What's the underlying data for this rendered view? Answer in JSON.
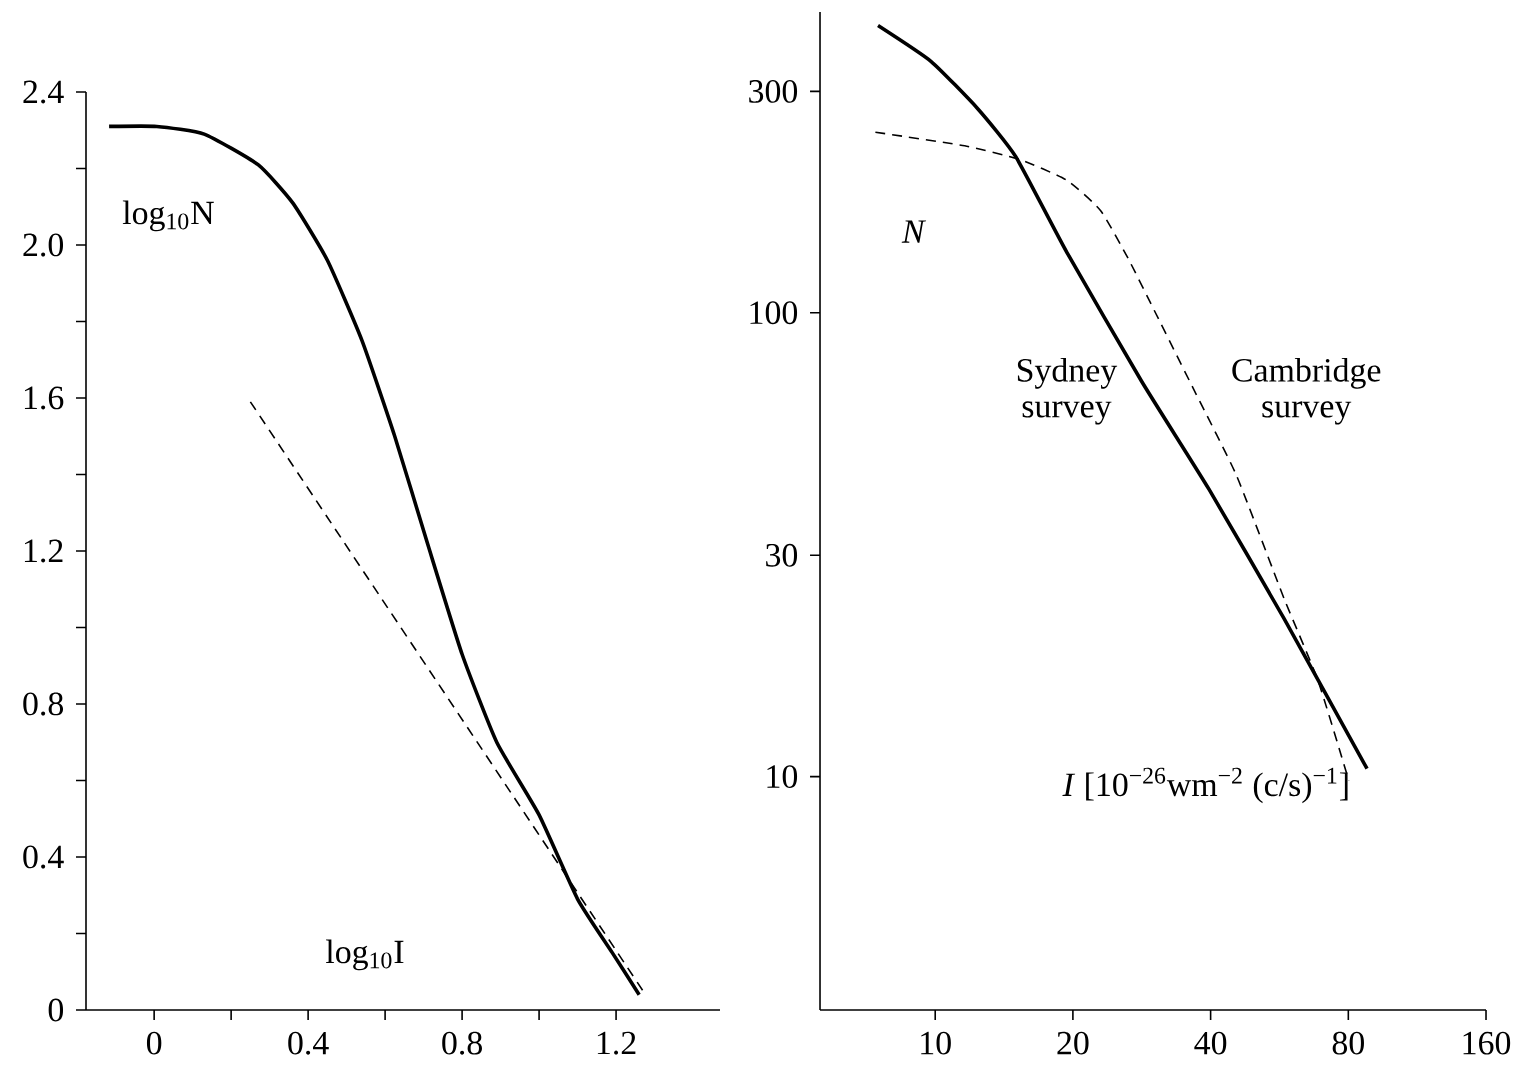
{
  "chart_data": [
    {
      "type": "line",
      "xlabel": "log$_{10}$I",
      "ylabel": "log$_{10}$N",
      "xlim": [
        -0.177,
        1.47
      ],
      "ylim": [
        0,
        2.4
      ],
      "xticks": [
        0,
        {
          "value": 0.2,
          "label": null
        },
        0.4,
        {
          "value": 0.6,
          "label": null
        },
        0.8,
        {
          "value": 1.0,
          "label": null
        },
        1.2
      ],
      "yticks": [
        0,
        {
          "value": 0.2,
          "label": null
        },
        0.4,
        {
          "value": 0.6,
          "label": null
        },
        0.8,
        {
          "value": 1.0,
          "label": null
        },
        1.2,
        {
          "value": 1.4,
          "label": null
        },
        1.6,
        {
          "value": 1.8,
          "label": null
        },
        {
          "value": 2.0,
          "label": "2.0"
        },
        {
          "value": 2.2,
          "label": null
        },
        2.4
      ],
      "series": [
        {
          "color": "#000000",
          "line_style": "solid",
          "x": [
            -0.117,
            0.007,
            0.13,
            0.27,
            0.36,
            0.45,
            0.54,
            0.625,
            0.71,
            0.8,
            0.89,
            1.0,
            1.1,
            1.19,
            1.26
          ],
          "values": [
            2.31,
            2.31,
            2.29,
            2.21,
            2.11,
            1.96,
            1.75,
            1.5,
            1.22,
            0.93,
            0.7,
            0.51,
            0.29,
            0.15,
            0.04
          ]
        },
        {
          "color": "#000000",
          "line_style": "dashed",
          "x": [
            0.25,
            1.27
          ],
          "values": [
            1.59,
            0.05
          ]
        }
      ]
    },
    {
      "type": "line",
      "xlabel": "*I* [10$^{−26}$wm$^{−2}$ (c/s)$^{−1}$]",
      "ylabel": "N",
      "log": "xy",
      "xlim": [
        5.6,
        160
      ],
      "ylim": [
        3.14,
        445
      ],
      "xticks": [
        10,
        20,
        40,
        80,
        160
      ],
      "yticks": [
        10,
        30,
        100,
        300
      ],
      "series": [
        {
          "name": "Sydney survey",
          "color": "#000000",
          "line_style": "solid",
          "x": [
            7.5,
            9.8,
            12.4,
            15.0,
            19.4,
            28.3,
            39.7,
            57.9,
            87.9
          ],
          "values": [
            416,
            348,
            275,
            217,
            135,
            71,
            41.6,
            21.9,
            10.4
          ]
        },
        {
          "name": "Cambridge survey",
          "color": "#000000",
          "line_style": "dashed",
          "x": [
            7.4,
            11.6,
            15.3,
            19.4,
            23.0,
            26.4,
            30.3,
            37.2,
            45.6,
            57.9,
            68.7,
            80.2
          ],
          "values": [
            245,
            229,
            214,
            193,
            166,
            131,
            100,
            66.7,
            44.5,
            24.2,
            16.1,
            9.8
          ]
        }
      ]
    }
  ]
}
